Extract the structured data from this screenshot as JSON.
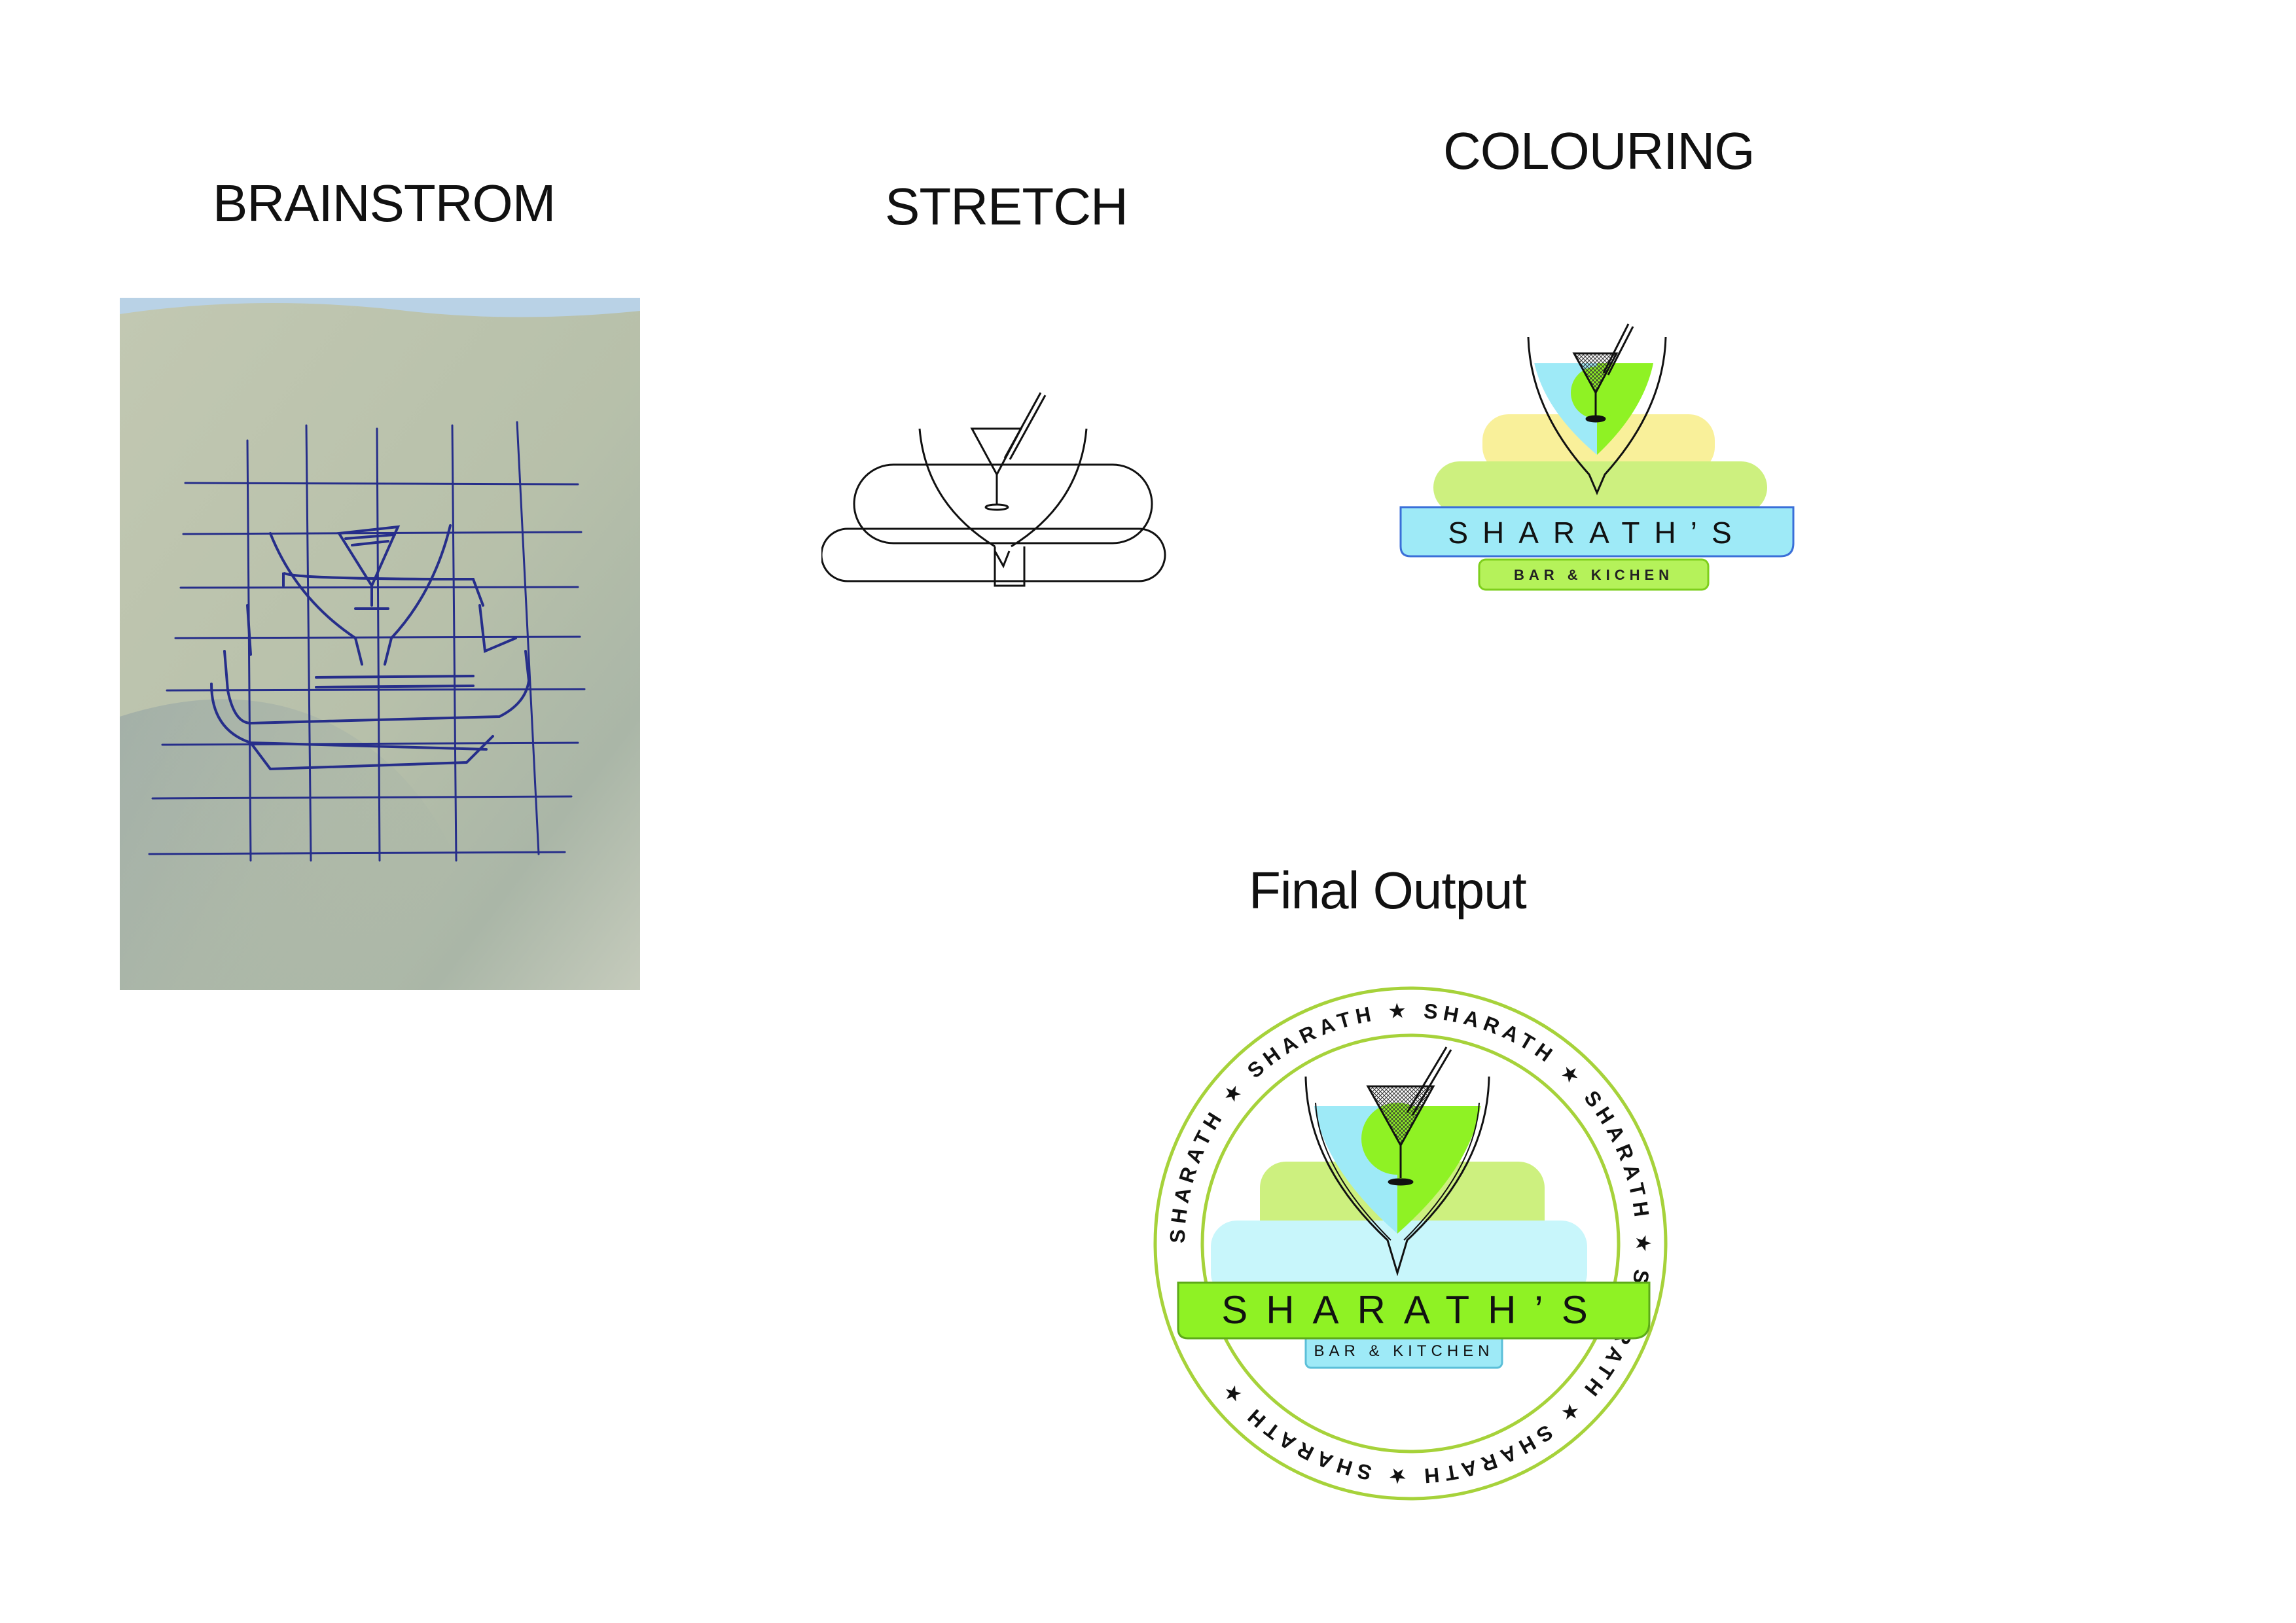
{
  "headings": {
    "brainstorm": "BRAINSTROM",
    "stretch": "STRETCH",
    "colouring": "COLOURING",
    "final": "Final Output"
  },
  "colouring_logo": {
    "name": "SHARATH’S",
    "tagline": "BAR & KICHEN"
  },
  "final_logo": {
    "name": "SHARATH’S",
    "tagline": "BAR & KITCHEN",
    "ring_text": "SHARATH ★ SHARATH ★ SHARATH ★ SHARATH ★ SHARATH ★ SHARATH ★ SHARATH ★ "
  },
  "colors": {
    "light_blue": "#9eeaf7",
    "pale_cyan": "#c8f6fb",
    "lime": "#8ff224",
    "pale_lime": "#cdf07f",
    "pale_yellow": "#f9f09a",
    "ring_green": "#a6d23a",
    "outline_blue": "#3a6fd8",
    "sketch_paper": "#b9c3ab",
    "sketch_ink": "#262e8a"
  }
}
